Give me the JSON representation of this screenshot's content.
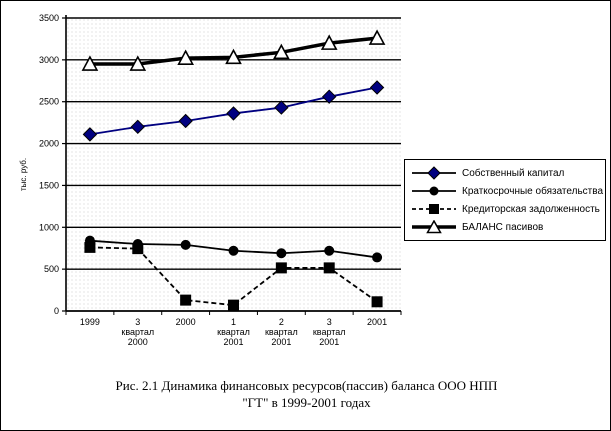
{
  "chart_data": {
    "type": "line",
    "title": "",
    "grid": true,
    "legend_position": "right",
    "x_categories": [
      "1999",
      "3 квартал 2000",
      "2000",
      "1 квартал 2001",
      "2 квартал 2001",
      "3 квартал 2001",
      "2001"
    ],
    "x_categories_multiline": [
      [
        "1999"
      ],
      [
        "3",
        "квартал",
        "2000"
      ],
      [
        "2000"
      ],
      [
        "1",
        "квартал",
        "2001"
      ],
      [
        "2",
        "квартал",
        "2001"
      ],
      [
        "3",
        "квартал",
        "2001"
      ],
      [
        "2001"
      ]
    ],
    "y_axis": {
      "title": "тыс. руб.",
      "min": 0,
      "max": 3500,
      "step": 500,
      "ticks": [
        3500,
        3000,
        2500,
        2000,
        1500,
        1000,
        500,
        0
      ]
    },
    "series": [
      {
        "name": "Собственный капитал",
        "marker": "diamond",
        "line": "solid",
        "color": "#000080",
        "values": [
          2110,
          2200,
          2270,
          2360,
          2430,
          2560,
          2670
        ]
      },
      {
        "name": "Краткосрочные обязательства",
        "marker": "circle",
        "line": "solid",
        "color": "#000000",
        "values": [
          840,
          800,
          790,
          720,
          690,
          720,
          640
        ]
      },
      {
        "name": "Кредиторская задолженность",
        "marker": "square",
        "line": "dashed",
        "color": "#000000",
        "values": [
          760,
          745,
          130,
          70,
          515,
          515,
          110
        ]
      },
      {
        "name": "БАЛАНС пасивов",
        "marker": "triangle",
        "line": "solid-thick",
        "color": "#000000",
        "marker_fill": "#ffffff",
        "values": [
          2950,
          2950,
          3020,
          3030,
          3090,
          3200,
          3260
        ]
      }
    ]
  },
  "caption": {
    "line1": "Рис. 2.1 Динамика финансовых ресурсов(пассив) баланса ООО НПП",
    "line2": "\"ГТ\" в 1999-2001 годах"
  }
}
